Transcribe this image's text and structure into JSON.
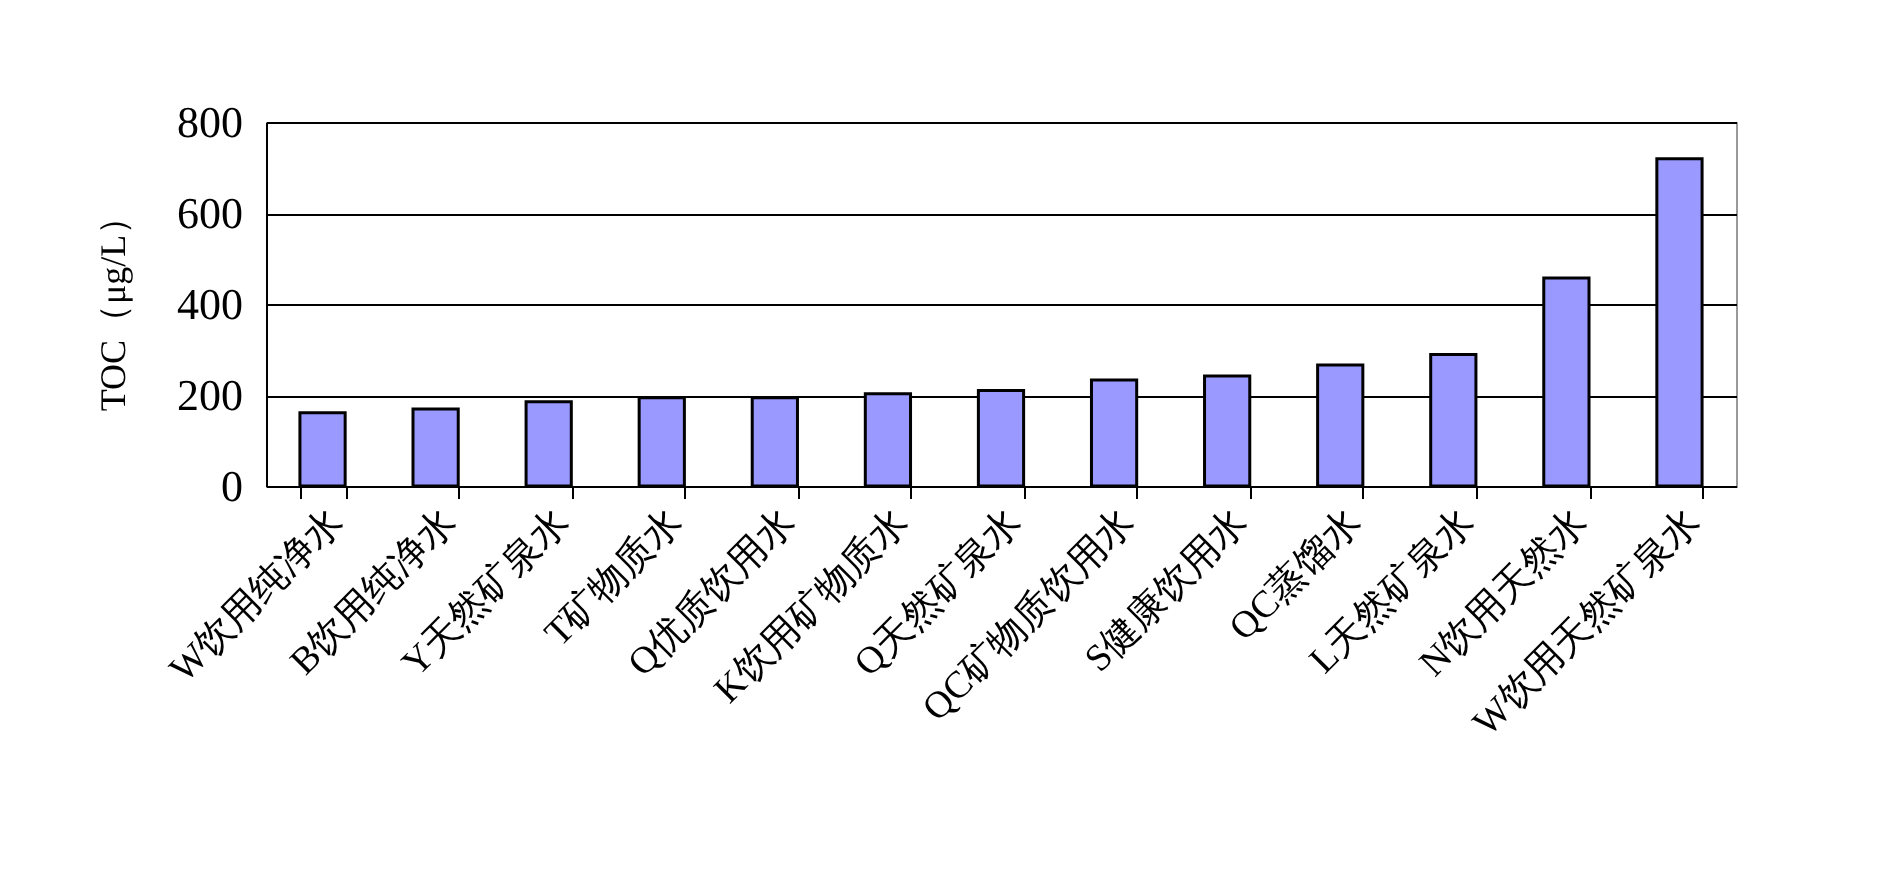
{
  "chart_data": {
    "type": "bar",
    "ylabel": "TOC（μg/L）",
    "categories": [
      "W饮用纯净水",
      "B饮用纯净水",
      "Y天然矿泉水",
      "T矿物质水",
      "Q优质饮用水",
      "K饮用矿物质水",
      "Q天然矿泉水",
      "QC矿物质饮用水",
      "S健康饮用水",
      "QC蒸馏水",
      "L天然矿泉水",
      "N饮用天然水",
      "W饮用天然矿泉水"
    ],
    "values": [
      161,
      169,
      185,
      194,
      194,
      203,
      210,
      233,
      242,
      266,
      289,
      457,
      719
    ],
    "color": "#9999ff",
    "ylim": [
      0,
      800
    ],
    "yticks": [
      0,
      200,
      400,
      600,
      800
    ],
    "grid": "y"
  }
}
